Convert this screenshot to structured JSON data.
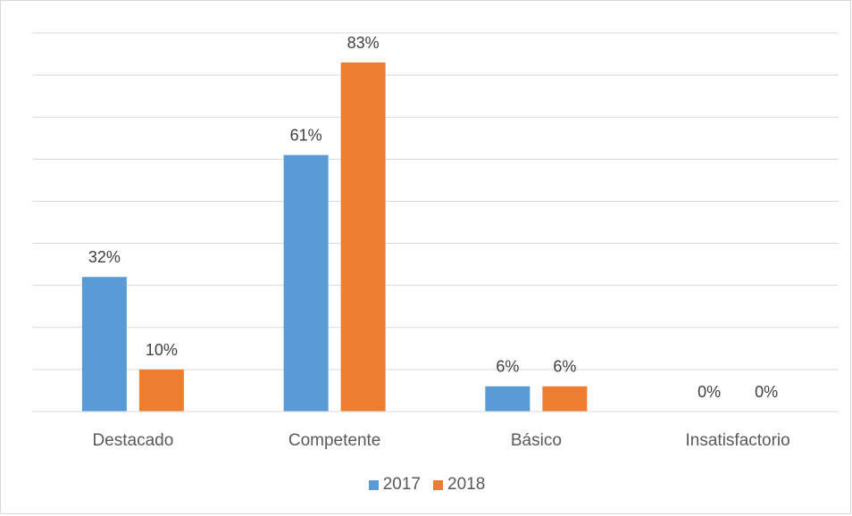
{
  "chart_data": {
    "type": "bar",
    "title": "",
    "xlabel": "",
    "ylabel": "",
    "categories": [
      "Destacado",
      "Competente",
      "Básico",
      "Insatisfactorio"
    ],
    "series": [
      {
        "name": "2017",
        "values": [
          32,
          61,
          6,
          0
        ],
        "labels": [
          "32%",
          "61%",
          "6%",
          "0%"
        ],
        "color": "#5B9BD5"
      },
      {
        "name": "2018",
        "values": [
          10,
          83,
          6,
          0
        ],
        "labels": [
          "10%",
          "83%",
          "6%",
          "0%"
        ],
        "color": "#ED7D31"
      }
    ],
    "ylim": [
      0,
      90
    ],
    "y_gridline_step": 10,
    "y_axis_labels_shown": false,
    "grid": true,
    "legend_position": "bottom",
    "gridline_color": "#d9d9d9",
    "label_color": "#404040"
  }
}
